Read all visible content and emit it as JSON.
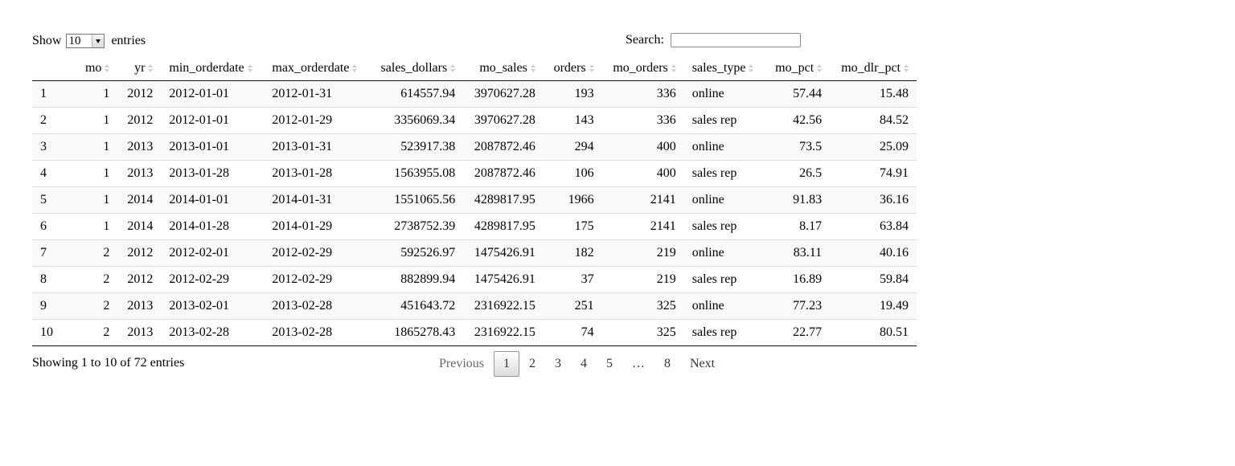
{
  "length": {
    "prefix": "Show",
    "value": "10",
    "suffix": "entries"
  },
  "search": {
    "label": "Search:",
    "value": "",
    "placeholder": ""
  },
  "table": {
    "columns": [
      {
        "key": "idx",
        "label": "",
        "sortable": false,
        "align": "left"
      },
      {
        "key": "mo",
        "label": "mo",
        "sortable": true,
        "align": "right"
      },
      {
        "key": "yr",
        "label": "yr",
        "sortable": true,
        "align": "right"
      },
      {
        "key": "min_orderdate",
        "label": "min_orderdate",
        "sortable": true,
        "align": "left"
      },
      {
        "key": "max_orderdate",
        "label": "max_orderdate",
        "sortable": true,
        "align": "left"
      },
      {
        "key": "sales_dollars",
        "label": "sales_dollars",
        "sortable": true,
        "align": "right"
      },
      {
        "key": "mo_sales",
        "label": "mo_sales",
        "sortable": true,
        "align": "right"
      },
      {
        "key": "orders",
        "label": "orders",
        "sortable": true,
        "align": "right"
      },
      {
        "key": "mo_orders",
        "label": "mo_orders",
        "sortable": true,
        "align": "right"
      },
      {
        "key": "sales_type",
        "label": "sales_type",
        "sortable": true,
        "align": "left"
      },
      {
        "key": "mo_pct",
        "label": "mo_pct",
        "sortable": true,
        "align": "right"
      },
      {
        "key": "mo_dlr_pct",
        "label": "mo_dlr_pct",
        "sortable": true,
        "align": "right"
      }
    ],
    "rows": [
      [
        "1",
        "1",
        "2012",
        "2012-01-01",
        "2012-01-31",
        "614557.94",
        "3970627.28",
        "193",
        "336",
        "online",
        "57.44",
        "15.48"
      ],
      [
        "2",
        "1",
        "2012",
        "2012-01-01",
        "2012-01-29",
        "3356069.34",
        "3970627.28",
        "143",
        "336",
        "sales rep",
        "42.56",
        "84.52"
      ],
      [
        "3",
        "1",
        "2013",
        "2013-01-01",
        "2013-01-31",
        "523917.38",
        "2087872.46",
        "294",
        "400",
        "online",
        "73.5",
        "25.09"
      ],
      [
        "4",
        "1",
        "2013",
        "2013-01-28",
        "2013-01-28",
        "1563955.08",
        "2087872.46",
        "106",
        "400",
        "sales rep",
        "26.5",
        "74.91"
      ],
      [
        "5",
        "1",
        "2014",
        "2014-01-01",
        "2014-01-31",
        "1551065.56",
        "4289817.95",
        "1966",
        "2141",
        "online",
        "91.83",
        "36.16"
      ],
      [
        "6",
        "1",
        "2014",
        "2014-01-28",
        "2014-01-29",
        "2738752.39",
        "4289817.95",
        "175",
        "2141",
        "sales rep",
        "8.17",
        "63.84"
      ],
      [
        "7",
        "2",
        "2012",
        "2012-02-01",
        "2012-02-29",
        "592526.97",
        "1475426.91",
        "182",
        "219",
        "online",
        "83.11",
        "40.16"
      ],
      [
        "8",
        "2",
        "2012",
        "2012-02-29",
        "2012-02-29",
        "882899.94",
        "1475426.91",
        "37",
        "219",
        "sales rep",
        "16.89",
        "59.84"
      ],
      [
        "9",
        "2",
        "2013",
        "2013-02-01",
        "2013-02-28",
        "451643.72",
        "2316922.15",
        "251",
        "325",
        "online",
        "77.23",
        "19.49"
      ],
      [
        "10",
        "2",
        "2013",
        "2013-02-28",
        "2013-02-28",
        "1865278.43",
        "2316922.15",
        "74",
        "325",
        "sales rep",
        "22.77",
        "80.51"
      ]
    ]
  },
  "info": "Showing 1 to 10 of 72 entries",
  "pagination": {
    "previous": "Previous",
    "pages": [
      "1",
      "2",
      "3",
      "4",
      "5",
      "…",
      "8"
    ],
    "current": "1",
    "next": "Next"
  }
}
